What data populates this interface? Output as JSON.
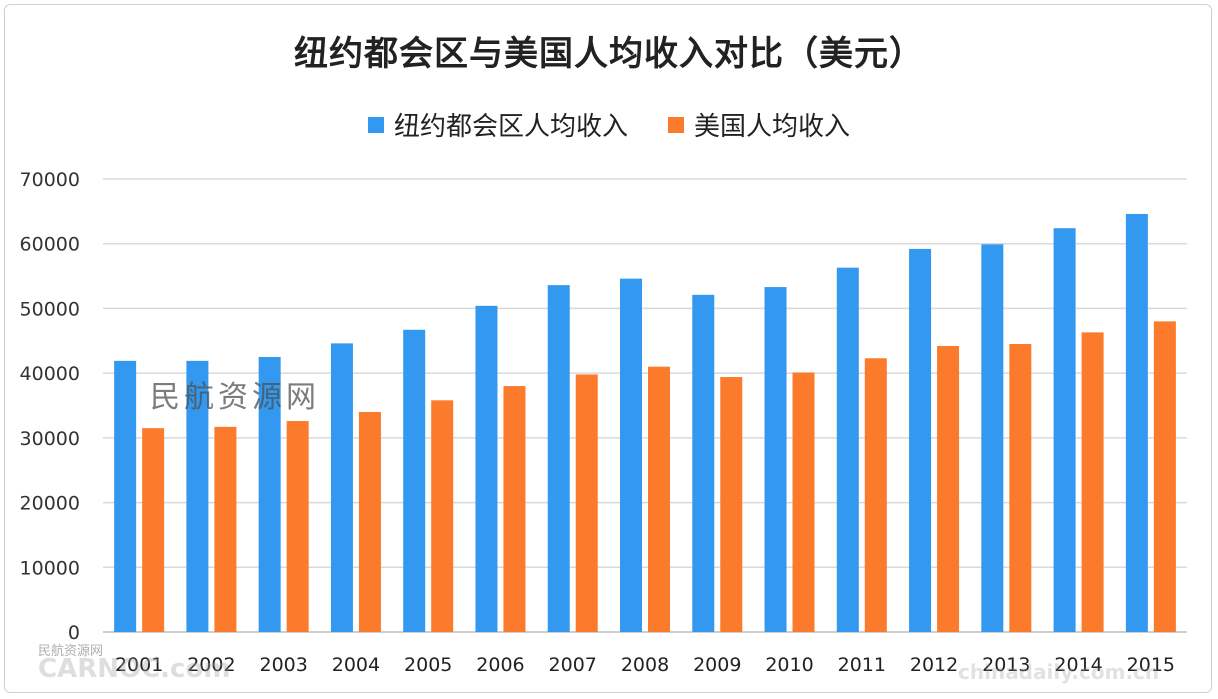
{
  "chart_data": {
    "type": "bar",
    "title": "纽约都会区与美国人均收入对比（美元）",
    "categories": [
      "2001",
      "2002",
      "2003",
      "2004",
      "2005",
      "2006",
      "2007",
      "2008",
      "2009",
      "2010",
      "2011",
      "2012",
      "2013",
      "2014",
      "2015"
    ],
    "series": [
      {
        "name": "纽约都会区人均收入",
        "color": "#3399f0",
        "values": [
          41900,
          41900,
          42500,
          44600,
          46700,
          50400,
          53600,
          54600,
          52100,
          53300,
          56300,
          59200,
          59900,
          62400,
          64600
        ]
      },
      {
        "name": "美国人均收入",
        "color": "#fb7a2c",
        "values": [
          31500,
          31700,
          32600,
          34000,
          35800,
          38000,
          39800,
          41000,
          39400,
          40100,
          42300,
          44200,
          44500,
          46300,
          48000
        ]
      }
    ],
    "xlabel": "",
    "ylabel": "",
    "ylim": [
      0,
      70000
    ],
    "yticks": [
      0,
      10000,
      20000,
      30000,
      40000,
      50000,
      60000,
      70000
    ],
    "grid": true,
    "legend_position": "top"
  },
  "watermarks": {
    "center": "民航资源网",
    "bottom_left_cn": "民航资源网",
    "bottom_left": "CARNOC.com",
    "bottom_right": "chinadaily.com.cn"
  }
}
